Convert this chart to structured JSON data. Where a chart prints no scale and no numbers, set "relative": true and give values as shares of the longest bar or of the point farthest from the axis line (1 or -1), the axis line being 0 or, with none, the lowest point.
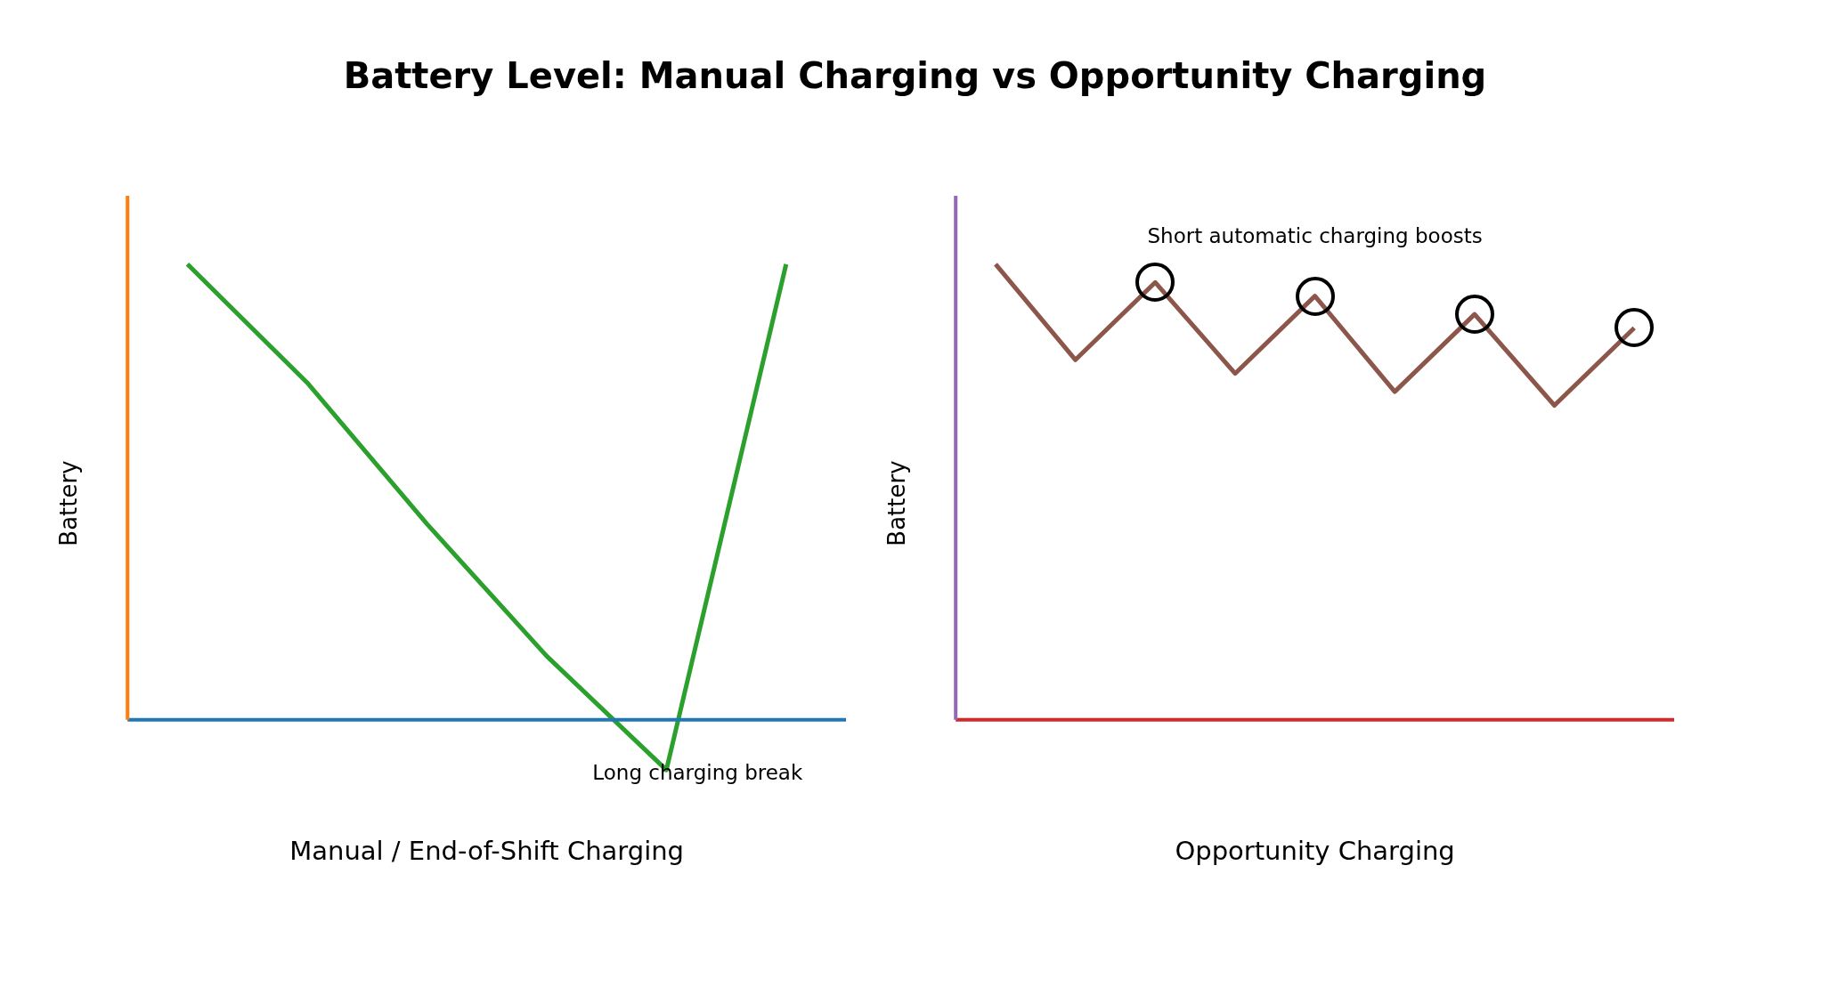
{
  "chart_data": [
    {
      "type": "line",
      "title": "Battery Level: Manual Charging vs Opportunity Charging",
      "xlabel": "Manual / End-of-Shift Charging",
      "ylabel": "Battery",
      "relative": true,
      "categories": [
        null,
        null,
        null,
        null,
        null,
        null
      ],
      "series": [
        {
          "color": "#2ca02c",
          "values": [
            1,
            0.74,
            0.43,
            0.14,
            -0.11,
            1
          ]
        }
      ],
      "annotations": [
        "Long charging break"
      ],
      "ref_lines": [
        {
          "axis": "y",
          "value": 0,
          "color": "#1f77b4"
        }
      ],
      "marker": "none",
      "grid": false,
      "legend": false
    },
    {
      "type": "line",
      "xlabel": "Opportunity Charging",
      "ylabel": "Battery",
      "relative": true,
      "categories": [
        null,
        null,
        null,
        null,
        null,
        null,
        null,
        null,
        null
      ],
      "series": [
        {
          "color": "#8c564b",
          "values": [
            1,
            0.79,
            0.96,
            0.76,
            0.93,
            0.72,
            0.89,
            0.69,
            0.86
          ]
        }
      ],
      "annotations": [
        "Short automatic charging boosts"
      ],
      "marker": "none",
      "grid": false,
      "legend": false
    }
  ]
}
